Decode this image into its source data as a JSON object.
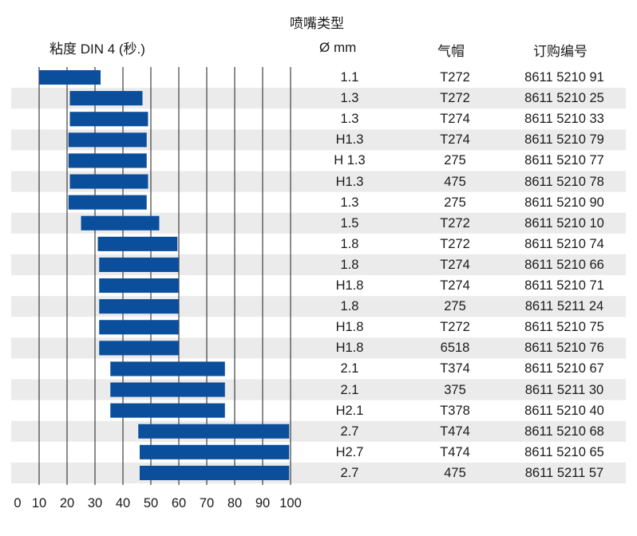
{
  "headers": {
    "nozzle_type": "喷嘴类型",
    "viscosity": "粘度 DIN 4 (秒.)",
    "diameter": "Ø mm",
    "air_cap": "气帽",
    "order_no": "订购编号"
  },
  "chart_data": {
    "type": "bar",
    "orientation": "horizontal-range",
    "xlabel": "粘度 DIN 4 (秒.)",
    "xlim": [
      0,
      100
    ],
    "x_ticks": [
      0,
      10,
      20,
      30,
      40,
      50,
      60,
      70,
      80,
      90,
      100
    ],
    "grid": true,
    "bar_color": "#0b4f9c",
    "stripe_color": "#ebebeb",
    "rows": [
      {
        "start": 10,
        "end": 32,
        "diameter": "1.1",
        "air_cap": "T272",
        "order_no": "8611 5210 91"
      },
      {
        "start": 21,
        "end": 47,
        "diameter": "1.3",
        "air_cap": "T272",
        "order_no": "8611 5210 25"
      },
      {
        "start": 21,
        "end": 49,
        "diameter": "1.3",
        "air_cap": "T274",
        "order_no": "8611 5210 33"
      },
      {
        "start": 20.5,
        "end": 48.5,
        "diameter": "H1.3",
        "air_cap": "T274",
        "order_no": "8611 5210 79"
      },
      {
        "start": 20.5,
        "end": 48.5,
        "diameter": "H 1.3",
        "air_cap": "275",
        "order_no": "8611 5210 77"
      },
      {
        "start": 21,
        "end": 49,
        "diameter": "H1.3",
        "air_cap": "475",
        "order_no": "8611 5210 78"
      },
      {
        "start": 20.5,
        "end": 48.5,
        "diameter": "1.3",
        "air_cap": "275",
        "order_no": "8611 5210 90"
      },
      {
        "start": 25,
        "end": 53,
        "diameter": "1.5",
        "air_cap": "T272",
        "order_no": "8611 5210 10"
      },
      {
        "start": 31,
        "end": 59.5,
        "diameter": "1.8",
        "air_cap": "T272",
        "order_no": "8611 5210 74"
      },
      {
        "start": 31.5,
        "end": 60,
        "diameter": "1.8",
        "air_cap": "T274",
        "order_no": "8611 5210 66"
      },
      {
        "start": 31.5,
        "end": 60,
        "diameter": "H1.8",
        "air_cap": "T274",
        "order_no": "8611 5210 71"
      },
      {
        "start": 31.5,
        "end": 60,
        "diameter": "1.8",
        "air_cap": "275",
        "order_no": "8611 5211 24"
      },
      {
        "start": 31.5,
        "end": 60,
        "diameter": "H1.8",
        "air_cap": "T272",
        "order_no": "8611 5210 75"
      },
      {
        "start": 31.5,
        "end": 60,
        "diameter": "H1.8",
        "air_cap": "6518",
        "order_no": "8611 5210 76"
      },
      {
        "start": 35.5,
        "end": 76.5,
        "diameter": "2.1",
        "air_cap": "T374",
        "order_no": "8611 5210 67"
      },
      {
        "start": 35.5,
        "end": 76.5,
        "diameter": "2.1",
        "air_cap": "375",
        "order_no": "8611 5211 30"
      },
      {
        "start": 35.5,
        "end": 76.5,
        "diameter": "H2.1",
        "air_cap": "T378",
        "order_no": "8611 5210 40"
      },
      {
        "start": 45.5,
        "end": 99.5,
        "diameter": "2.7",
        "air_cap": "T474",
        "order_no": "8611 5210 68"
      },
      {
        "start": 46,
        "end": 99.5,
        "diameter": "H2.7",
        "air_cap": "T474",
        "order_no": "8611 5210 65"
      },
      {
        "start": 46,
        "end": 99.5,
        "diameter": "2.7",
        "air_cap": "475",
        "order_no": "8611 5211 57"
      }
    ]
  }
}
